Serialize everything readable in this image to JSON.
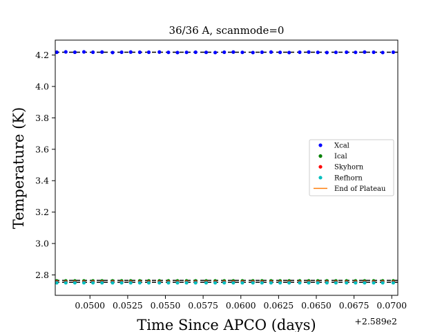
{
  "chart_data": {
    "type": "scatter",
    "title": "36/36 A, scanmode=0",
    "xlabel": "Time Since APCO (days)",
    "ylabel": "Temperature (K)",
    "x_offset_label": "+2.589e2",
    "xlim": [
      0.0477,
      0.0704
    ],
    "ylim": [
      2.67,
      4.295
    ],
    "x_ticks": [
      0.05,
      0.0525,
      0.055,
      0.0575,
      0.06,
      0.0625,
      0.065,
      0.0675,
      0.07
    ],
    "x_tick_labels": [
      "0.0500",
      "0.0525",
      "0.0550",
      "0.0575",
      "0.0600",
      "0.0625",
      "0.0650",
      "0.0675",
      "0.0700"
    ],
    "y_ticks": [
      2.8,
      3.0,
      3.2,
      3.4,
      3.6,
      3.8,
      4.0,
      4.2
    ],
    "y_tick_labels": [
      "2.8",
      "3.0",
      "3.2",
      "3.4",
      "3.6",
      "3.8",
      "4.0",
      "4.2"
    ],
    "x": [
      0.0478,
      0.0484,
      0.049,
      0.0496,
      0.0502,
      0.0508,
      0.0515,
      0.0521,
      0.0527,
      0.0533,
      0.0539,
      0.0546,
      0.0552,
      0.0558,
      0.0564,
      0.057,
      0.0577,
      0.0583,
      0.0589,
      0.0595,
      0.0601,
      0.0608,
      0.0614,
      0.062,
      0.0626,
      0.0632,
      0.0639,
      0.0645,
      0.0651,
      0.0657,
      0.0663,
      0.067,
      0.0676,
      0.0682,
      0.0688,
      0.0694,
      0.0701
    ],
    "series": [
      {
        "name": "Xcal",
        "color": "#0000ff",
        "values": [
          4.218,
          4.22,
          4.218,
          4.22,
          4.218,
          4.219,
          4.216,
          4.218,
          4.219,
          4.218,
          4.218,
          4.219,
          4.217,
          4.216,
          4.217,
          4.218,
          4.217,
          4.216,
          4.218,
          4.219,
          4.217,
          4.216,
          4.218,
          4.219,
          4.217,
          4.216,
          4.218,
          4.219,
          4.217,
          4.216,
          4.217,
          4.218,
          4.217,
          4.219,
          4.218,
          4.216,
          4.218
        ]
      },
      {
        "name": "Ical",
        "color": "#008000",
        "values": [
          2.762,
          2.762,
          2.762,
          2.762,
          2.762,
          2.762,
          2.762,
          2.762,
          2.762,
          2.762,
          2.762,
          2.762,
          2.762,
          2.762,
          2.762,
          2.762,
          2.762,
          2.762,
          2.762,
          2.762,
          2.762,
          2.762,
          2.762,
          2.762,
          2.762,
          2.762,
          2.762,
          2.762,
          2.762,
          2.762,
          2.762,
          2.762,
          2.762,
          2.762,
          2.762,
          2.762,
          2.762
        ]
      },
      {
        "name": "Skyhorn",
        "color": "#ff0000",
        "values": [
          2.755,
          2.755,
          2.755,
          2.755,
          2.755,
          2.755,
          2.755,
          2.755,
          2.755,
          2.755,
          2.755,
          2.755,
          2.755,
          2.755,
          2.755,
          2.755,
          2.755,
          2.755,
          2.755,
          2.755,
          2.755,
          2.755,
          2.755,
          2.755,
          2.755,
          2.755,
          2.755,
          2.755,
          2.755,
          2.755,
          2.755,
          2.755,
          2.755,
          2.755,
          2.755,
          2.755,
          2.755
        ]
      },
      {
        "name": "Refhorn",
        "color": "#00bfbf",
        "values": [
          2.75,
          2.75,
          2.75,
          2.75,
          2.75,
          2.75,
          2.75,
          2.75,
          2.75,
          2.75,
          2.75,
          2.75,
          2.75,
          2.75,
          2.75,
          2.75,
          2.75,
          2.75,
          2.75,
          2.75,
          2.75,
          2.75,
          2.75,
          2.75,
          2.75,
          2.75,
          2.75,
          2.75,
          2.75,
          2.75,
          2.75,
          2.75,
          2.75,
          2.75,
          2.75,
          2.75,
          2.75
        ]
      }
    ],
    "dashed_lines": [
      {
        "y": 4.218,
        "color": "#000000"
      },
      {
        "y": 2.765,
        "color": "#000000"
      },
      {
        "y": 2.753,
        "color": "#000000"
      }
    ],
    "legend": {
      "placement": "center-right",
      "entries": [
        {
          "label": "Xcal",
          "color": "#0000ff",
          "marker": "dot"
        },
        {
          "label": "Ical",
          "color": "#008000",
          "marker": "dot"
        },
        {
          "label": "Skyhorn",
          "color": "#ff0000",
          "marker": "dot"
        },
        {
          "label": "Refhorn",
          "color": "#00bfbf",
          "marker": "dot"
        },
        {
          "label": "End of Plateau",
          "color": "#ff7f0e",
          "marker": "line"
        }
      ]
    },
    "grid": false
  }
}
